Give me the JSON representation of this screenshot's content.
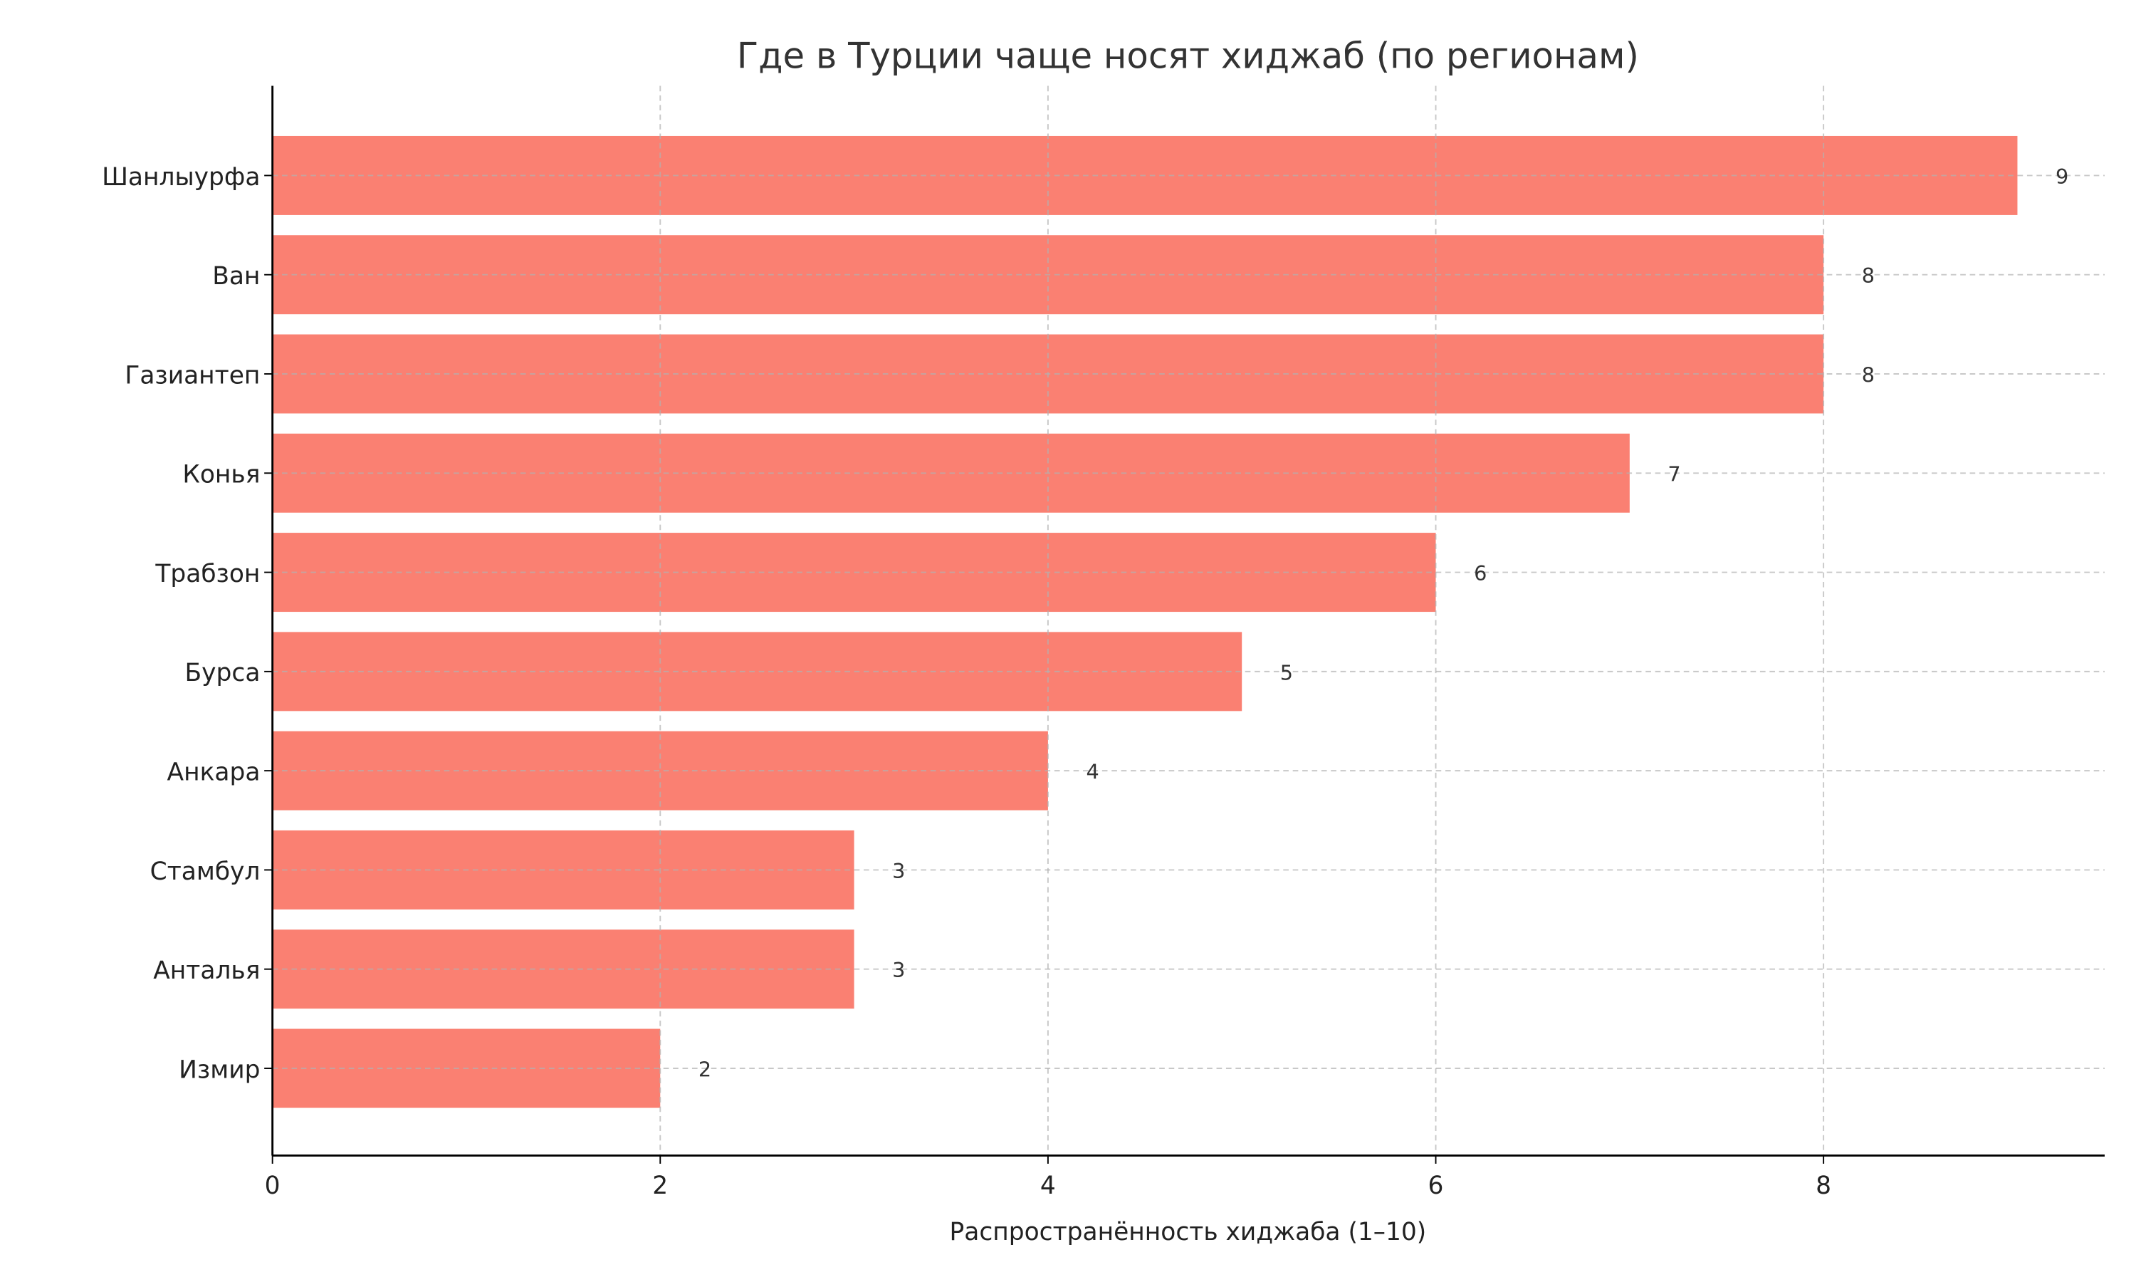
{
  "chart_data": {
    "type": "bar",
    "orientation": "horizontal",
    "title": "Где в Турции чаще носят хиджаб (по регионам)",
    "xlabel": "Распространённость хиджаба (1–10)",
    "ylabel": "",
    "categories": [
      "Шанлыурфа",
      "Ван",
      "Газиантеп",
      "Конья",
      "Трабзон",
      "Бурса",
      "Анкара",
      "Стамбул",
      "Анталья",
      "Измир"
    ],
    "values": [
      9,
      8,
      8,
      7,
      6,
      5,
      4,
      3,
      3,
      2
    ],
    "data_labels": [
      "9",
      "8",
      "8",
      "7",
      "6",
      "5",
      "4",
      "3",
      "3",
      "2"
    ],
    "xticks": [
      "0",
      "2",
      "4",
      "6",
      "8"
    ],
    "xlim": [
      0,
      9.45
    ],
    "grid": true,
    "bar_color": "#fa8072"
  }
}
